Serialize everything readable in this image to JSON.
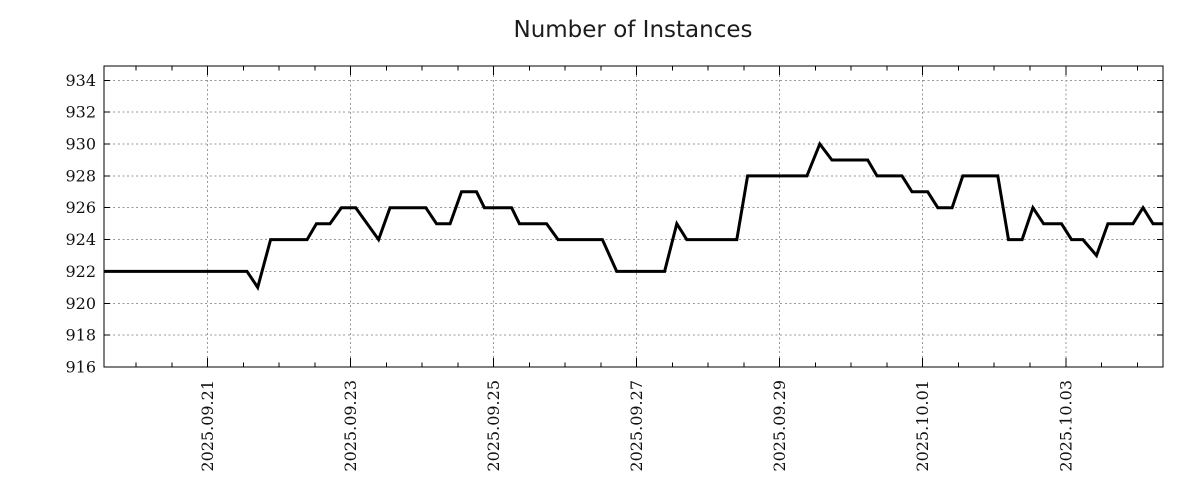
{
  "colors": {
    "background": "#ffffff",
    "axis_border": "#000000",
    "grid": "#999999",
    "line": "#000000",
    "text": "#111111"
  },
  "chart_data": {
    "type": "line",
    "title": "Number of Instances",
    "xlabel": "",
    "ylabel": "",
    "legend_position": "none",
    "x_axis": {
      "range": [
        19.55,
        34.36
      ],
      "unit": "date",
      "major_ticks": [
        {
          "value": 21,
          "label": "2025.09.21"
        },
        {
          "value": 23,
          "label": "2025.09.23"
        },
        {
          "value": 25,
          "label": "2025.09.25"
        },
        {
          "value": 27,
          "label": "2025.09.27"
        },
        {
          "value": 29,
          "label": "2025.09.29"
        },
        {
          "value": 31,
          "label": "2025.10.01"
        },
        {
          "value": 33,
          "label": "2025.10.03"
        }
      ],
      "minor_tick_interval": 0.5,
      "tick_label_rotation": -90,
      "grid": true
    },
    "y_axis": {
      "range": [
        916,
        934.9
      ],
      "ticks": [
        916,
        918,
        920,
        922,
        924,
        926,
        928,
        930,
        932,
        934
      ],
      "tick_interval": 2,
      "grid": true
    },
    "series": [
      {
        "name": "Number of Instances",
        "color": "#000000",
        "line_width": 3,
        "points": [
          [
            19.55,
            922
          ],
          [
            21.55,
            922
          ],
          [
            21.7,
            921
          ],
          [
            21.88,
            924
          ],
          [
            22.39,
            924
          ],
          [
            22.52,
            925
          ],
          [
            22.71,
            925
          ],
          [
            22.87,
            926
          ],
          [
            23.07,
            926
          ],
          [
            23.39,
            924
          ],
          [
            23.55,
            926
          ],
          [
            24.05,
            926
          ],
          [
            24.2,
            925
          ],
          [
            24.39,
            925
          ],
          [
            24.55,
            927
          ],
          [
            24.76,
            927
          ],
          [
            24.87,
            926
          ],
          [
            25.25,
            926
          ],
          [
            25.36,
            925
          ],
          [
            25.74,
            925
          ],
          [
            25.9,
            924
          ],
          [
            26.52,
            924
          ],
          [
            26.72,
            922
          ],
          [
            27.39,
            922
          ],
          [
            27.56,
            925
          ],
          [
            27.7,
            924
          ],
          [
            28.4,
            924
          ],
          [
            28.55,
            928
          ],
          [
            29.38,
            928
          ],
          [
            29.56,
            930
          ],
          [
            29.73,
            929
          ],
          [
            30.23,
            929
          ],
          [
            30.36,
            928
          ],
          [
            30.71,
            928
          ],
          [
            30.85,
            927
          ],
          [
            31.07,
            927
          ],
          [
            31.21,
            926
          ],
          [
            31.41,
            926
          ],
          [
            31.56,
            928
          ],
          [
            32.05,
            928
          ],
          [
            32.2,
            924
          ],
          [
            32.39,
            924
          ],
          [
            32.54,
            926
          ],
          [
            32.69,
            925
          ],
          [
            32.94,
            925
          ],
          [
            33.08,
            924
          ],
          [
            33.24,
            924
          ],
          [
            33.43,
            923
          ],
          [
            33.59,
            925
          ],
          [
            33.94,
            925
          ],
          [
            34.08,
            926
          ],
          [
            34.22,
            925
          ],
          [
            34.36,
            925
          ]
        ]
      }
    ]
  }
}
